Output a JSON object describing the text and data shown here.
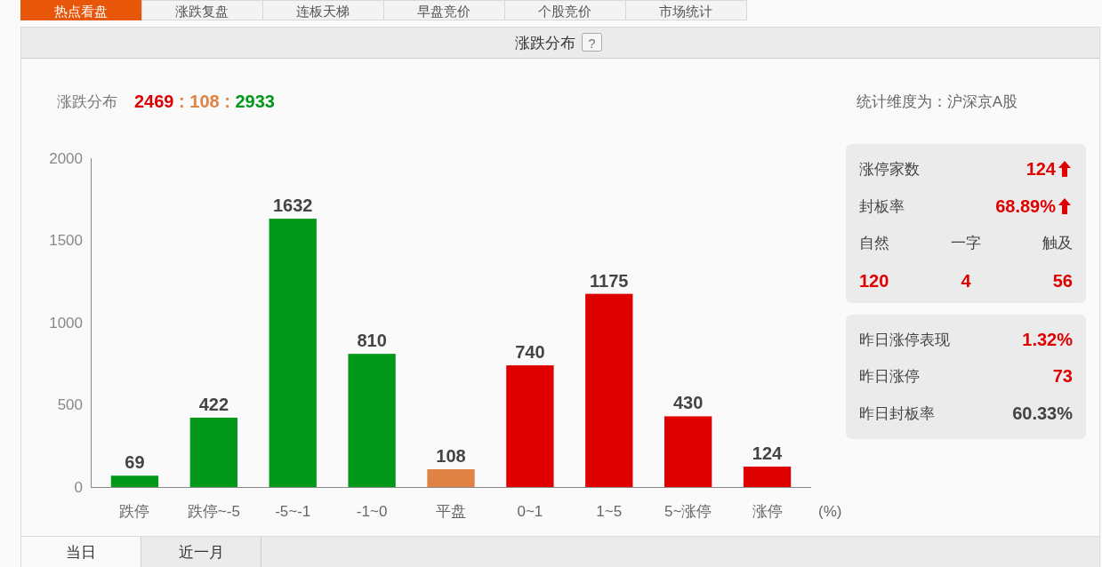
{
  "chart_data": [
    {
      "type": "other",
      "annotations": [
        "热点看盘",
        "涨跌复盘",
        "连板天梯",
        "早盘竞价",
        "个股竞价",
        "市场统计"
      ]
    },
    {
      "type": "bar",
      "title": "涨跌分布",
      "subtitle": "涨跌分布",
      "annotations": [
        "?",
        "2469 : 108 : 2933",
        "统计维度为：沪深京A股"
      ],
      "categories": [
        "跌停",
        "跌停~-5",
        "-5~-1",
        "-1~0",
        "平盘",
        "0~1",
        "1~5",
        "5~涨停",
        "涨停"
      ],
      "values": [
        69,
        422,
        1632,
        810,
        108,
        740,
        1175,
        430,
        124
      ],
      "colors": [
        "#02991b",
        "#02991b",
        "#02991b",
        "#02991b",
        "#e08244",
        "#df0000",
        "#df0000",
        "#df0000",
        "#df0000"
      ],
      "ylim": [
        0,
        2000
      ],
      "yticks": [
        0,
        500,
        1000,
        1500,
        2000
      ],
      "xlabel": "(%)",
      "data_labels": true
    },
    {
      "type": "other",
      "annotations": [
        "涨停家数",
        "124",
        "封板率",
        "68.89%",
        "自然",
        "一字",
        "触及",
        "120",
        "4",
        "56"
      ]
    },
    {
      "type": "other",
      "annotations": [
        "昨日涨停表现",
        "1.32%",
        "昨日涨停",
        "73",
        "昨日封板率",
        "60.33%"
      ]
    },
    {
      "type": "other",
      "annotations": [
        "当日",
        "近一月"
      ]
    }
  ]
}
